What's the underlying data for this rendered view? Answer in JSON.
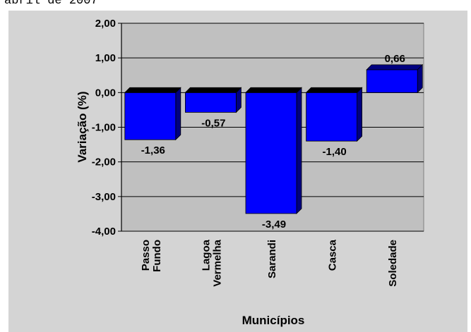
{
  "caption": "abril de 2007",
  "chart_data": {
    "type": "bar",
    "title": "",
    "xlabel": "Municípios",
    "ylabel": "Variação (%)",
    "categories": [
      [
        "Passo",
        "Fundo"
      ],
      [
        "Lagoa",
        "Vermelha"
      ],
      [
        "Sarandi"
      ],
      [
        "Casca"
      ],
      [
        "Soledade"
      ]
    ],
    "values": [
      -1.36,
      -0.57,
      -3.49,
      -1.4,
      0.66
    ],
    "value_labels": [
      "-1,36",
      "-0,57",
      "-3,49",
      "-1,40",
      "0,66"
    ],
    "ylim": [
      -4,
      2
    ],
    "yticks": [
      "2,00",
      "1,00",
      "0,00",
      "-1,00",
      "-2,00",
      "-3,00",
      "-4,00"
    ],
    "grid": true,
    "bar_color": "#0000ff",
    "bar_top_color": "#000000",
    "bar_side_color": "#000080",
    "plot_background": "#c0c0c0",
    "chart_background": "#d4d4d4"
  }
}
